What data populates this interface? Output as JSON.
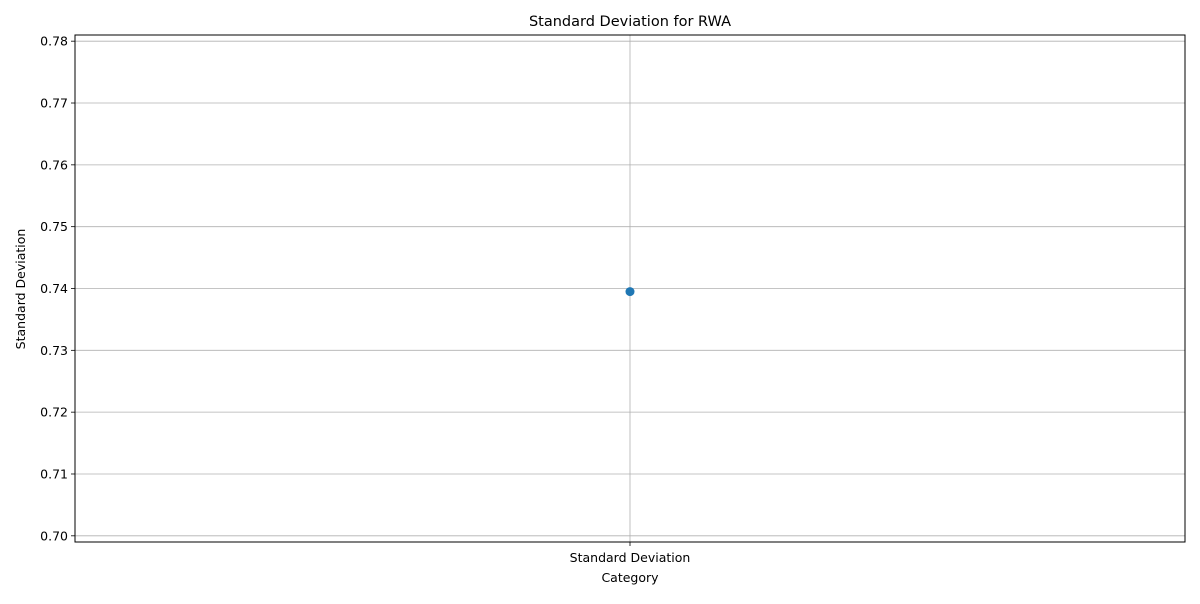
{
  "chart_data": {
    "type": "scatter",
    "title": "Standard Deviation for RWA",
    "xlabel": "Category",
    "ylabel": "Standard Deviation",
    "categories": [
      "Standard Deviation"
    ],
    "values": [
      0.7395
    ],
    "ylim": [
      0.699,
      0.781
    ],
    "yticks": [
      0.7,
      0.71,
      0.72,
      0.73,
      0.74,
      0.75,
      0.76,
      0.77,
      0.78
    ],
    "ytick_labels": [
      "0.70",
      "0.71",
      "0.72",
      "0.73",
      "0.74",
      "0.75",
      "0.76",
      "0.77",
      "0.78"
    ],
    "grid": true,
    "marker_color": "#1f77b4",
    "grid_color": "#b0b0b0"
  }
}
